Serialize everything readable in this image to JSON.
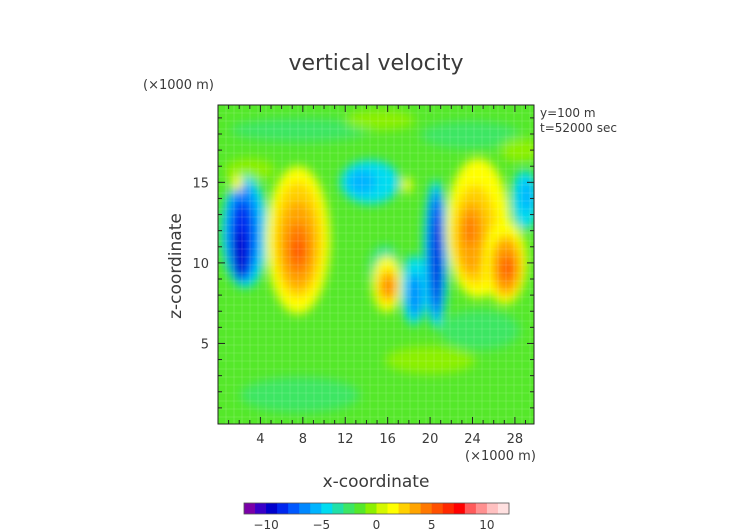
{
  "chart_data": {
    "type": "heatmap",
    "title": "vertical velocity",
    "xlabel": "x-coordinate",
    "ylabel": "z-coordinate",
    "x_unit": "(×1000 m)",
    "y_unit": "(×1000 m)",
    "annotations": [
      "y=100 m",
      "t=52000 sec"
    ],
    "xlim": [
      0,
      29.8
    ],
    "ylim": [
      0,
      19.8
    ],
    "x_ticks": [
      4,
      8,
      12,
      16,
      20,
      24,
      28
    ],
    "y_ticks": [
      5,
      10,
      15
    ],
    "x_tick_labels": [
      "4",
      "8",
      "12",
      "16",
      "20",
      "24",
      "28"
    ],
    "y_tick_labels": [
      "5",
      "10",
      "15"
    ],
    "grid": true,
    "colorbar": {
      "range": [
        -12,
        12
      ],
      "ticks": [
        -10,
        -5,
        0,
        5,
        10
      ],
      "tick_labels": [
        "−10",
        "−5",
        "0",
        "5",
        "10"
      ],
      "colors": [
        "#7a00a8",
        "#3a00c8",
        "#0000cc",
        "#0026ee",
        "#0058ff",
        "#0088ff",
        "#00b4ff",
        "#00dcf0",
        "#20e0a8",
        "#3ce664",
        "#55e82a",
        "#8cf000",
        "#d4f800",
        "#ffff00",
        "#ffd000",
        "#ffa400",
        "#ff7800",
        "#ff5000",
        "#ff2800",
        "#ff0000",
        "#ff5a5a",
        "#ff9090",
        "#ffc0c0",
        "#ffe0e0"
      ]
    },
    "features": [
      {
        "x": 2.2,
        "z": 11.5,
        "value": -9
      },
      {
        "x": 3.4,
        "z": 14.0,
        "value": -6
      },
      {
        "x": 8.2,
        "z": 11.5,
        "value": 8
      },
      {
        "x": 15.8,
        "z": 8.5,
        "value": 7
      },
      {
        "x": 18.6,
        "z": 9.5,
        "value": -5
      },
      {
        "x": 20.4,
        "z": 11.0,
        "value": -11
      },
      {
        "x": 23.6,
        "z": 12.5,
        "value": 8
      },
      {
        "x": 27.3,
        "z": 10.0,
        "value": 8
      }
    ]
  }
}
